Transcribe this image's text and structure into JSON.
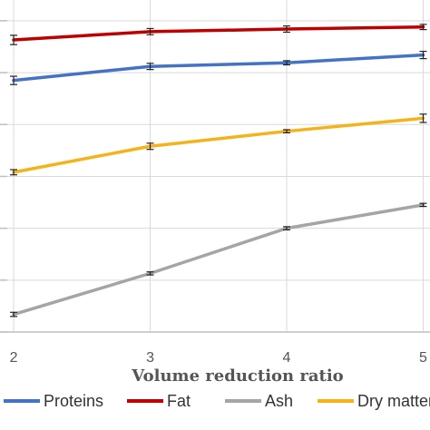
{
  "chart_data": {
    "type": "line",
    "title": "",
    "xlabel": "Volume reduction ratio",
    "ylabel": "",
    "x": [
      2,
      3,
      4,
      5
    ],
    "xlim": [
      1.9,
      5.05
    ],
    "ylim": [
      0,
      6.4
    ],
    "grid": true,
    "legend_position": "bottom",
    "series": [
      {
        "name": "Proteins",
        "color": "#4472C4",
        "values": [
          4.85,
          5.12,
          5.19,
          5.34
        ],
        "errors": [
          0.08,
          0.06,
          0.04,
          0.07
        ]
      },
      {
        "name": "Fat",
        "color": "#C00000",
        "values": [
          5.63,
          5.79,
          5.84,
          5.88
        ],
        "errors": [
          0.09,
          0.06,
          0.06,
          0.05
        ]
      },
      {
        "name": "Ash",
        "color": "#A5A5A5",
        "values": [
          0.34,
          1.13,
          2.0,
          2.45
        ],
        "errors": [
          0.04,
          0.03,
          0.03,
          0.03
        ]
      },
      {
        "name": "Dry matter",
        "color": "#F5B31B",
        "values": [
          3.08,
          3.58,
          3.87,
          4.12
        ],
        "errors": [
          0.05,
          0.06,
          0.03,
          0.08
        ]
      }
    ]
  }
}
